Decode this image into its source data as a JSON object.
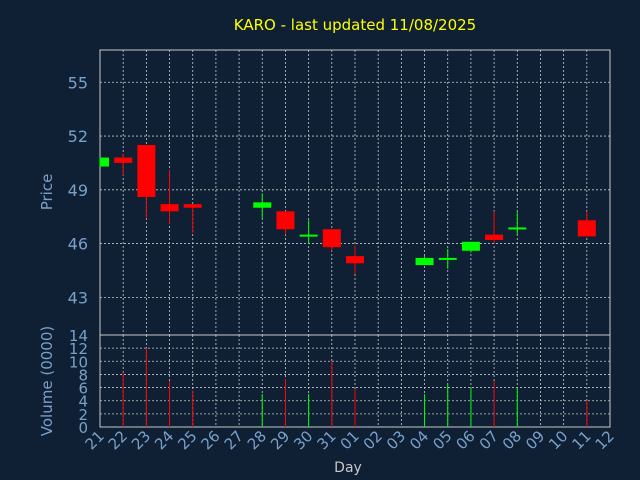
{
  "chart_data": {
    "type": "candlestick",
    "title": "KARO - last updated 11/08/2025",
    "xlabel": "Day",
    "price_panel": {
      "ylabel": "Price",
      "ylim": [
        40.9,
        56.8
      ],
      "yticks": [
        "55",
        "52",
        "49",
        "46",
        "43"
      ],
      "grid": true
    },
    "volume_panel": {
      "ylabel": "Volume (0000)",
      "ylim": [
        0,
        14
      ],
      "yticks": [
        "14",
        "12",
        "10",
        "8",
        "6",
        "4",
        "2",
        "0"
      ],
      "grid": true
    },
    "x_labels": [
      "21",
      "22",
      "23",
      "24",
      "25",
      "26",
      "27",
      "28",
      "29",
      "30",
      "31",
      "01",
      "02",
      "03",
      "04",
      "05",
      "06",
      "07",
      "08",
      "09",
      "10",
      "11",
      "12"
    ],
    "candles": [
      {
        "day": "21",
        "open": 50.3,
        "close": 50.8,
        "high": 50.8,
        "low": 50.3,
        "volume": null
      },
      {
        "day": "22",
        "open": 50.8,
        "close": 50.5,
        "high": 51.0,
        "low": 49.8,
        "volume": 8.3
      },
      {
        "day": "23",
        "open": 51.5,
        "close": 48.6,
        "high": 51.5,
        "low": 47.4,
        "volume": 12.0
      },
      {
        "day": "24",
        "open": 48.2,
        "close": 47.8,
        "high": 50.1,
        "low": 47.1,
        "volume": 7.0
      },
      {
        "day": "25",
        "open": 48.2,
        "close": 48.0,
        "high": 48.2,
        "low": 46.6,
        "volume": 5.5
      },
      {
        "day": "28",
        "open": 48.0,
        "close": 48.3,
        "high": 48.8,
        "low": 47.4,
        "volume": 5.0
      },
      {
        "day": "29",
        "open": 47.8,
        "close": 46.8,
        "high": 47.8,
        "low": 46.5,
        "volume": 7.3
      },
      {
        "day": "30",
        "open": 46.4,
        "close": 46.5,
        "high": 47.3,
        "low": 46.0,
        "volume": 5.0
      },
      {
        "day": "31",
        "open": 46.8,
        "close": 45.8,
        "high": 46.8,
        "low": 45.6,
        "volume": 10.0
      },
      {
        "day": "01",
        "open": 45.3,
        "close": 44.9,
        "high": 45.9,
        "low": 44.3,
        "volume": 5.8
      },
      {
        "day": "04",
        "open": 44.8,
        "close": 45.2,
        "high": 45.3,
        "low": 44.8,
        "volume": 5.0
      },
      {
        "day": "05",
        "open": 45.1,
        "close": 45.2,
        "high": 45.7,
        "low": 44.6,
        "volume": 6.5
      },
      {
        "day": "06",
        "open": 45.6,
        "close": 46.1,
        "high": 46.1,
        "low": 45.5,
        "volume": 6.0
      },
      {
        "day": "07",
        "open": 46.5,
        "close": 46.2,
        "high": 47.8,
        "low": 46.0,
        "volume": 7.0
      },
      {
        "day": "08",
        "open": 46.8,
        "close": 46.9,
        "high": 47.8,
        "low": 46.5,
        "volume": 6.0
      },
      {
        "day": "11",
        "open": 47.3,
        "close": 46.4,
        "high": 47.8,
        "low": 46.4,
        "volume": 4.0
      }
    ],
    "colors": {
      "background": "#0f2035",
      "grid": "#c8c8c8",
      "axis": "#c8c8c8",
      "title": "#ffff00",
      "label": "#7aa0c8",
      "tick": "#7aa0c8",
      "up": "#00ff00",
      "down": "#ff0000"
    }
  }
}
